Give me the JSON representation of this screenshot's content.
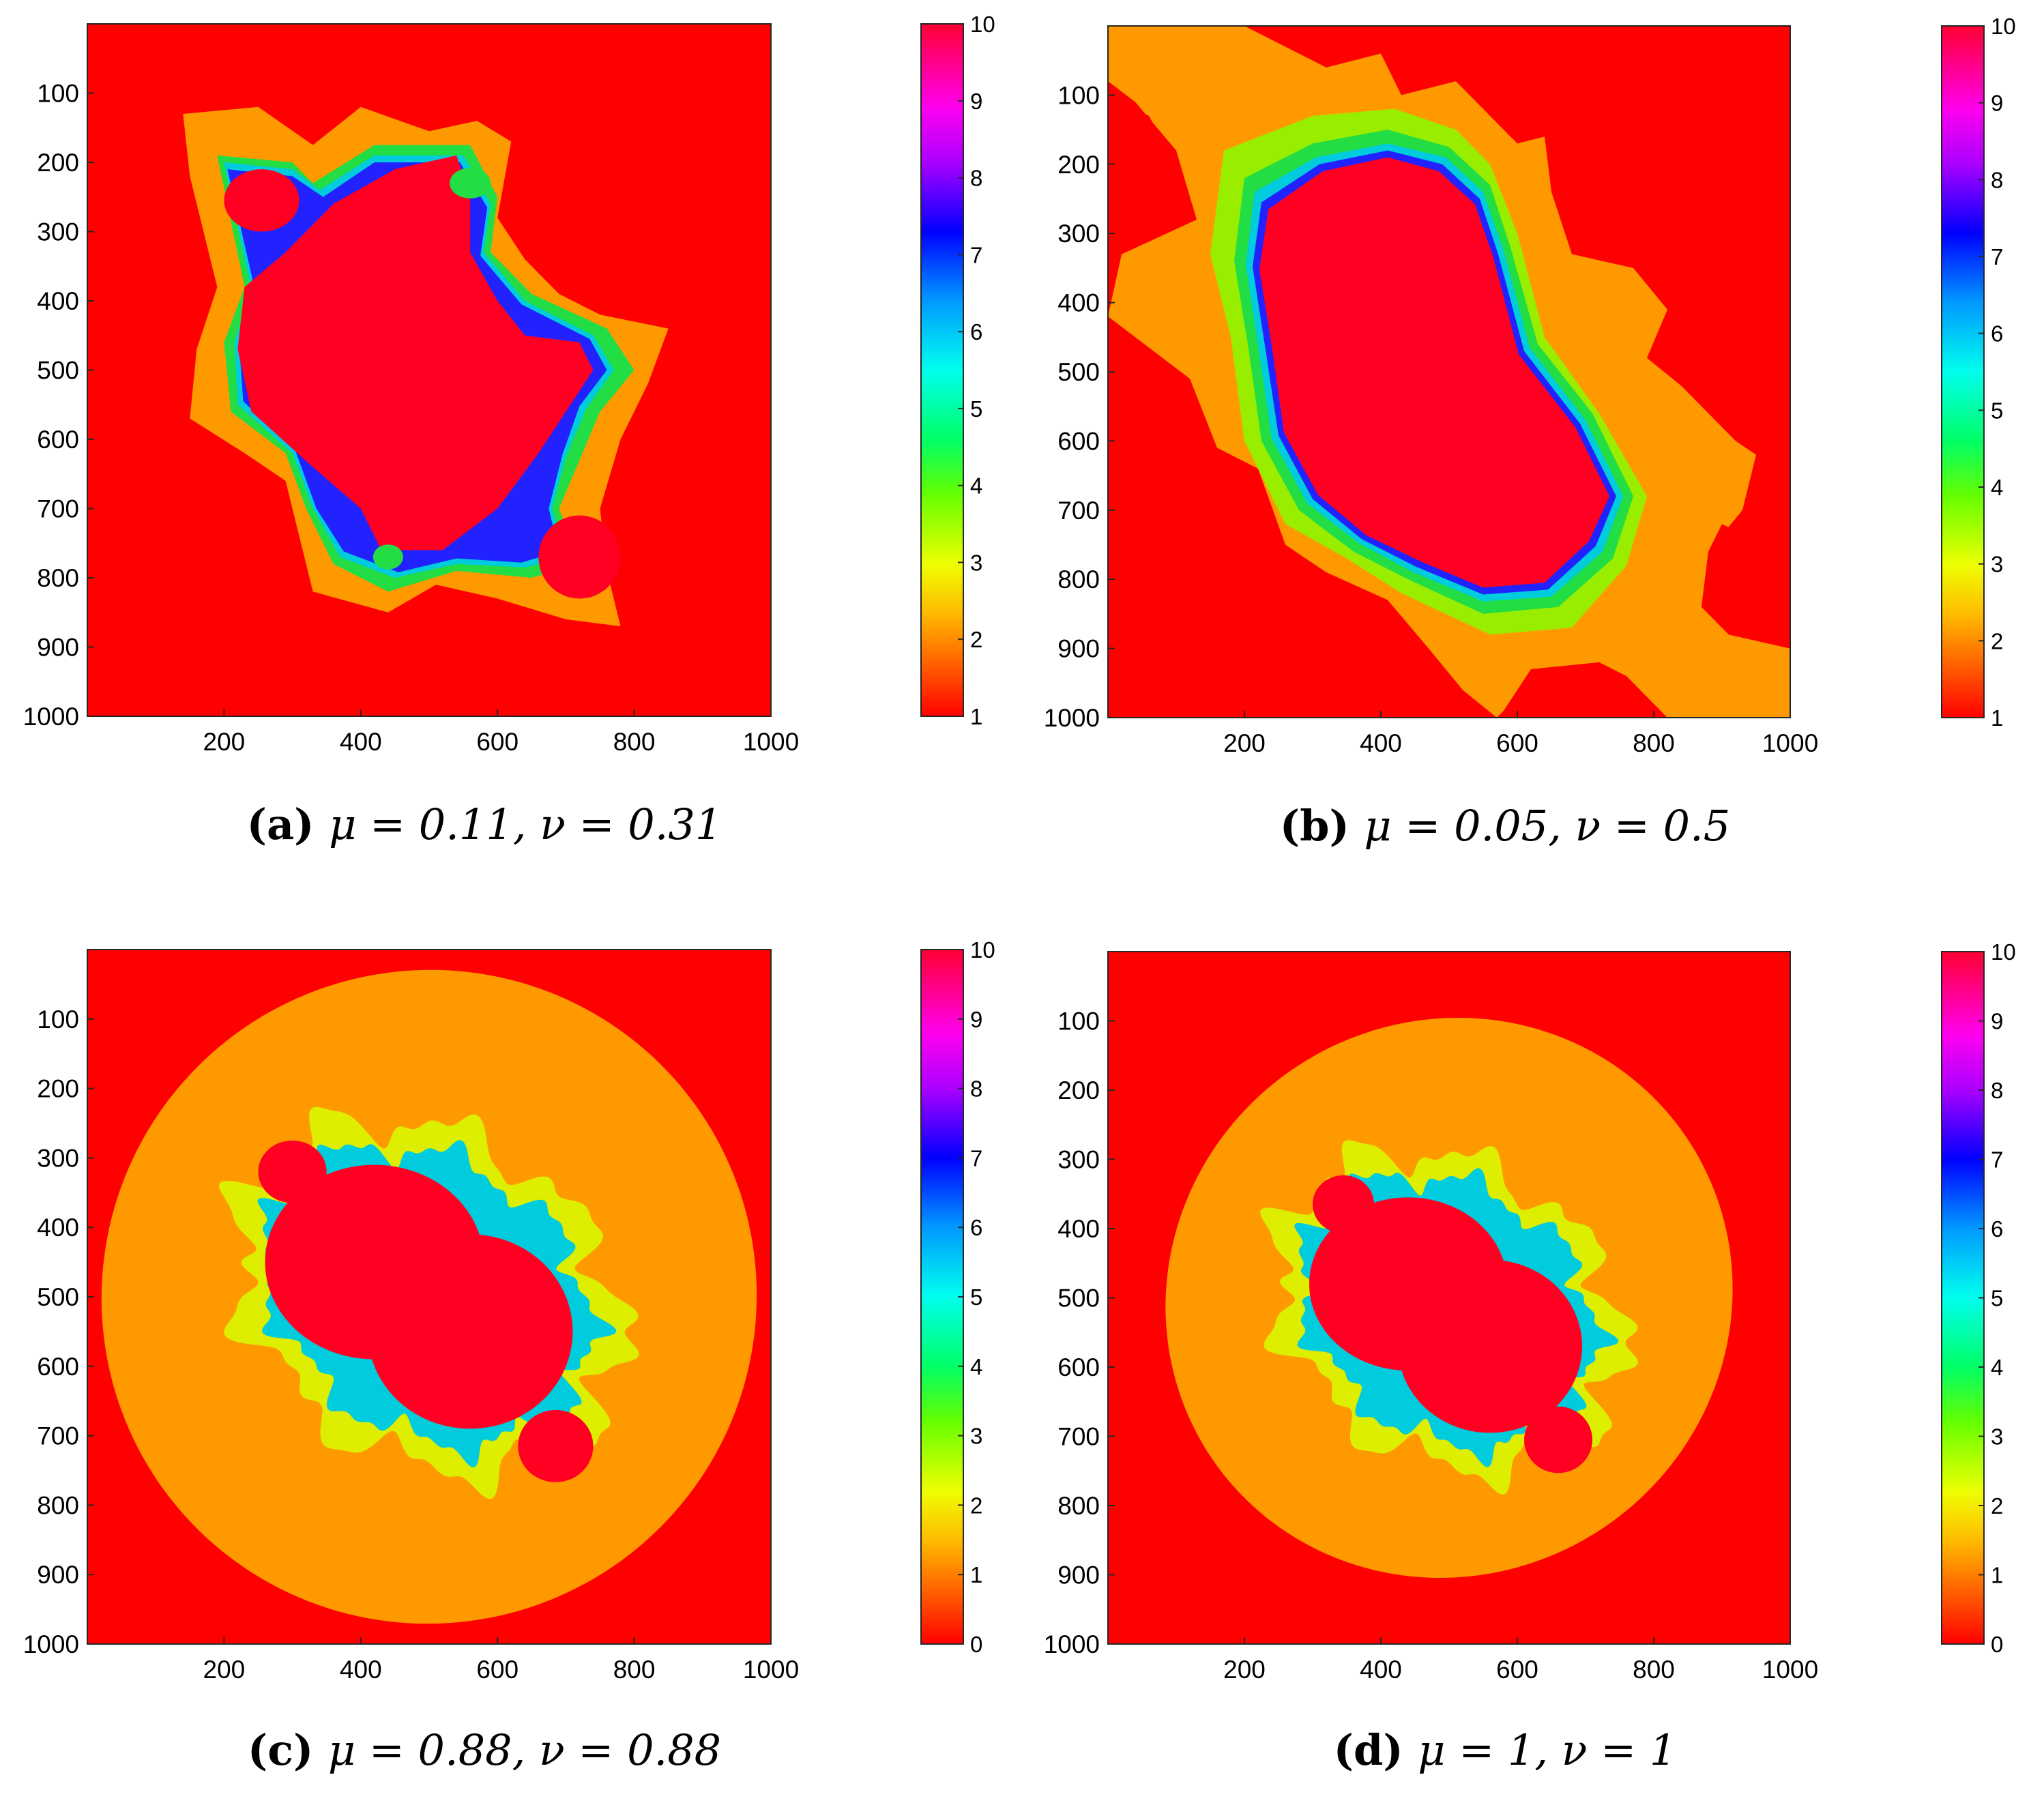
{
  "figure": {
    "panels": [
      {
        "label": "a",
        "caption": "μ = 0.11, ν = 0.31",
        "colorbar_ticks": [
          "1",
          "2",
          "3",
          "4",
          "5",
          "6",
          "7",
          "8",
          "9",
          "10"
        ],
        "shape": "fractal_a"
      },
      {
        "label": "b",
        "caption": "μ = 0.05, ν = 0.5",
        "colorbar_ticks": [
          "1",
          "2",
          "3",
          "4",
          "5",
          "6",
          "7",
          "8",
          "9",
          "10"
        ],
        "shape": "fractal_b"
      },
      {
        "label": "c",
        "caption": "μ = 0.88, ν = 0.88",
        "colorbar_ticks": [
          "0",
          "1",
          "2",
          "3",
          "4",
          "5",
          "6",
          "7",
          "8",
          "9",
          "10"
        ],
        "shape": "fractal_c"
      },
      {
        "label": "d",
        "caption": "μ = 1, ν = 1",
        "colorbar_ticks": [
          "0",
          "1",
          "2",
          "3",
          "4",
          "5",
          "6",
          "7",
          "8",
          "9",
          "10"
        ],
        "shape": "fractal_d"
      }
    ]
  },
  "chart_data": [
    {
      "type": "heatmap",
      "panel": "a",
      "title": "(a) μ = 0.11, ν = 0.31",
      "xlim": [
        0,
        1000
      ],
      "ylim": [
        1000,
        0
      ],
      "x_ticks": [
        "200",
        "400",
        "600",
        "800",
        "1000"
      ],
      "y_ticks": [
        "100",
        "200",
        "300",
        "400",
        "500",
        "600",
        "700",
        "800",
        "900",
        "1000"
      ],
      "colorbar_range": [
        1,
        10
      ],
      "colorbar_ticks": [
        "1",
        "2",
        "3",
        "4",
        "5",
        "6",
        "7",
        "8",
        "9",
        "10"
      ],
      "colormap": "hsv-like (red-orange-yellow-green-cyan-blue-magenta-red)"
    },
    {
      "type": "heatmap",
      "panel": "b",
      "title": "(b) μ = 0.05, ν = 0.5",
      "xlim": [
        0,
        1000
      ],
      "ylim": [
        1000,
        0
      ],
      "x_ticks": [
        "200",
        "400",
        "600",
        "800",
        "1000"
      ],
      "y_ticks": [
        "100",
        "200",
        "300",
        "400",
        "500",
        "600",
        "700",
        "800",
        "900",
        "1000"
      ],
      "colorbar_range": [
        1,
        10
      ],
      "colorbar_ticks": [
        "1",
        "2",
        "3",
        "4",
        "5",
        "6",
        "7",
        "8",
        "9",
        "10"
      ],
      "colormap": "hsv-like (red-orange-yellow-green-cyan-blue-magenta-red)"
    },
    {
      "type": "heatmap",
      "panel": "c",
      "title": "(c) μ = 0.88, ν = 0.88",
      "xlim": [
        0,
        1000
      ],
      "ylim": [
        1000,
        0
      ],
      "x_ticks": [
        "200",
        "400",
        "600",
        "800",
        "1000"
      ],
      "y_ticks": [
        "100",
        "200",
        "300",
        "400",
        "500",
        "600",
        "700",
        "800",
        "900",
        "1000"
      ],
      "colorbar_range": [
        0,
        10
      ],
      "colorbar_ticks": [
        "0",
        "1",
        "2",
        "3",
        "4",
        "5",
        "6",
        "7",
        "8",
        "9",
        "10"
      ],
      "colormap": "hsv-like (red-orange-yellow-green-cyan-blue-magenta-red)"
    },
    {
      "type": "heatmap",
      "panel": "d",
      "title": "(d) μ = 1, ν = 1",
      "xlim": [
        0,
        1000
      ],
      "ylim": [
        1000,
        0
      ],
      "x_ticks": [
        "200",
        "400",
        "600",
        "800",
        "1000"
      ],
      "y_ticks": [
        "100",
        "200",
        "300",
        "400",
        "500",
        "600",
        "700",
        "800",
        "900",
        "1000"
      ],
      "colorbar_range": [
        0,
        10
      ],
      "colorbar_ticks": [
        "0",
        "1",
        "2",
        "3",
        "4",
        "5",
        "6",
        "7",
        "8",
        "9",
        "10"
      ],
      "colormap": "hsv-like (red-orange-yellow-green-cyan-blue-magenta-red)"
    }
  ],
  "colors": {
    "background_red": "#ff0000",
    "interior_red": "#ff0022",
    "orange": "#ff9900",
    "yellow": "#ddee00",
    "green": "#22dd44",
    "cyan": "#00ccdd",
    "blue": "#2222ff",
    "magenta": "#dd22ff",
    "lime": "#99ee00"
  }
}
